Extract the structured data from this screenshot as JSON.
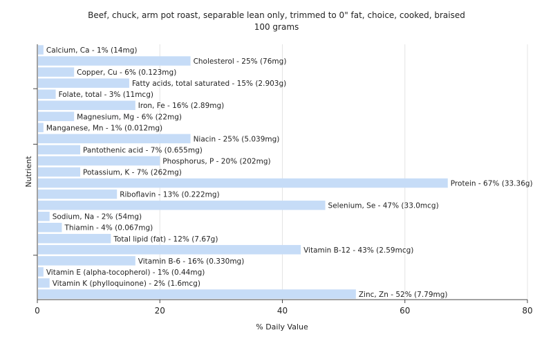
{
  "chart_data": {
    "type": "bar",
    "orientation": "horizontal",
    "title": "Beef, chuck, arm pot roast, separable lean only, trimmed to 0\" fat, choice, cooked, braised",
    "subtitle": "100 grams",
    "xlabel": "% Daily Value",
    "ylabel": "Nutrient",
    "xlim": [
      0,
      80
    ],
    "xticks": [
      "0",
      "20",
      "40",
      "60",
      "80"
    ],
    "grid": true,
    "bar_color": "#c6dcf7",
    "categories": [
      "Calcium, Ca",
      "Cholesterol",
      "Copper, Cu",
      "Fatty acids, total saturated",
      "Folate, total",
      "Iron, Fe",
      "Magnesium, Mg",
      "Manganese, Mn",
      "Niacin",
      "Pantothenic acid",
      "Phosphorus, P",
      "Potassium, K",
      "Protein",
      "Riboflavin",
      "Selenium, Se",
      "Sodium, Na",
      "Thiamin",
      "Total lipid (fat)",
      "Vitamin B-12",
      "Vitamin B-6",
      "Vitamin E (alpha-tocopherol)",
      "Vitamin K (phylloquinone)",
      "Zinc, Zn"
    ],
    "values": [
      1,
      25,
      6,
      15,
      3,
      16,
      6,
      1,
      25,
      7,
      20,
      7,
      67,
      13,
      47,
      2,
      4,
      12,
      43,
      16,
      1,
      2,
      52
    ],
    "labels": [
      "Calcium, Ca - 1% (14mg)",
      "Cholesterol - 25% (76mg)",
      "Copper, Cu - 6% (0.123mg)",
      "Fatty acids, total saturated - 15% (2.903g)",
      "Folate, total - 3% (11mcg)",
      "Iron, Fe - 16% (2.89mg)",
      "Magnesium, Mg - 6% (22mg)",
      "Manganese, Mn - 1% (0.012mg)",
      "Niacin - 25% (5.039mg)",
      "Pantothenic acid - 7% (0.655mg)",
      "Phosphorus, P - 20% (202mg)",
      "Potassium, K - 7% (262mg)",
      "Protein - 67% (33.36g)",
      "Riboflavin - 13% (0.222mg)",
      "Selenium, Se - 47% (33.0mcg)",
      "Sodium, Na - 2% (54mg)",
      "Thiamin - 4% (0.067mg)",
      "Total lipid (fat) - 12% (7.67g)",
      "Vitamin B-12 - 43% (2.59mcg)",
      "Vitamin B-6 - 16% (0.330mg)",
      "Vitamin E (alpha-tocopherol) - 1% (0.44mg)",
      "Vitamin K (phylloquinone) - 2% (1.6mcg)",
      "Zinc, Zn - 52% (7.79mg)"
    ]
  }
}
